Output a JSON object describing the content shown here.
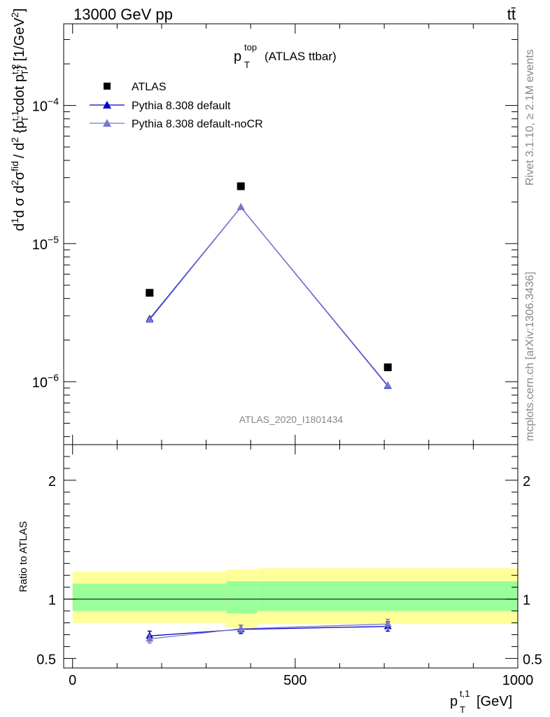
{
  "header": {
    "left": "13000 GeV pp",
    "right": "tt̄"
  },
  "side_labels": {
    "rivet": "Rivet 3.1.10, ≥ 2.1M events",
    "mcplots": "mcplots.cern.ch [arXiv:1306.3436]"
  },
  "chart_data": [
    {
      "type": "scatter",
      "panel": "main",
      "title_main": "p",
      "title_sup": "top",
      "title_sub": "T",
      "title_suffix": "(ATLAS ttbar)",
      "ylabel": "d²σ^{fid}/d²{p_T^{t,1} cdot p_T^{t,2}} [1/GeV²]",
      "yscale": "log",
      "ylim": [
        3.5e-07,
        0.00039
      ],
      "xlim": [
        -20,
        1000
      ],
      "y_ticks": [
        {
          "value": 1e-06,
          "base": "10",
          "exp": "−6"
        },
        {
          "value": 1e-05,
          "base": "10",
          "exp": "−5"
        },
        {
          "value": 0.0001,
          "base": "10",
          "exp": "−4"
        }
      ],
      "watermark": "ATLAS_2020_I1801434",
      "legend_placement": "top-left",
      "series": [
        {
          "name": "ATLAS",
          "marker": "square",
          "color": "#000000",
          "x": [
            173,
            378,
            708
          ],
          "y": [
            4.4e-06,
            2.6e-05,
            1.27e-06
          ]
        },
        {
          "name": "Pythia 8.308 default",
          "marker": "triangle",
          "color": "#0000cc",
          "x": [
            173,
            378,
            708
          ],
          "y": [
            2.85e-06,
            1.83e-05,
            9.3e-07
          ]
        },
        {
          "name": "Pythia 8.308 default-noCR",
          "marker": "triangle",
          "color": "#7777cc",
          "x": [
            173,
            378,
            708
          ],
          "y": [
            2.8e-06,
            1.83e-05,
            9.4e-07
          ]
        }
      ]
    },
    {
      "type": "line",
      "panel": "ratio",
      "ylabel": "Ratio to ATLAS",
      "xlabel_main": "p",
      "xlabel_sup": "t,1",
      "xlabel_sub": "T",
      "xlabel_unit": "[GeV]",
      "xlim": [
        -20,
        1000
      ],
      "ylim": [
        0.42,
        2.3
      ],
      "x_ticks": [
        0,
        500,
        1000
      ],
      "y_ticks": [
        0.5,
        1,
        2
      ],
      "bands": [
        {
          "x0": 0,
          "x1": 345,
          "yellow": [
            0.8,
            1.23
          ],
          "green": [
            0.9,
            1.13
          ]
        },
        {
          "x0": 345,
          "x1": 415,
          "yellow": [
            0.76,
            1.25
          ],
          "green": [
            0.88,
            1.15
          ]
        },
        {
          "x0": 415,
          "x1": 1000,
          "yellow": [
            0.79,
            1.26
          ],
          "green": [
            0.9,
            1.15
          ]
        }
      ],
      "band_colors": {
        "yellow": "#ffff99",
        "green": "#99ff99"
      },
      "series": [
        {
          "name": "Pythia 8.308 default",
          "color": "#0000cc",
          "x": [
            173,
            378,
            708
          ],
          "y": [
            0.69,
            0.745,
            0.77
          ],
          "err": [
            0.04,
            0.035,
            0.04
          ]
        },
        {
          "name": "Pythia 8.308 default-noCR",
          "color": "#7777cc",
          "x": [
            173,
            378,
            708
          ],
          "y": [
            0.665,
            0.75,
            0.79
          ],
          "err": [
            0.035,
            0.03,
            0.04
          ]
        }
      ]
    }
  ]
}
